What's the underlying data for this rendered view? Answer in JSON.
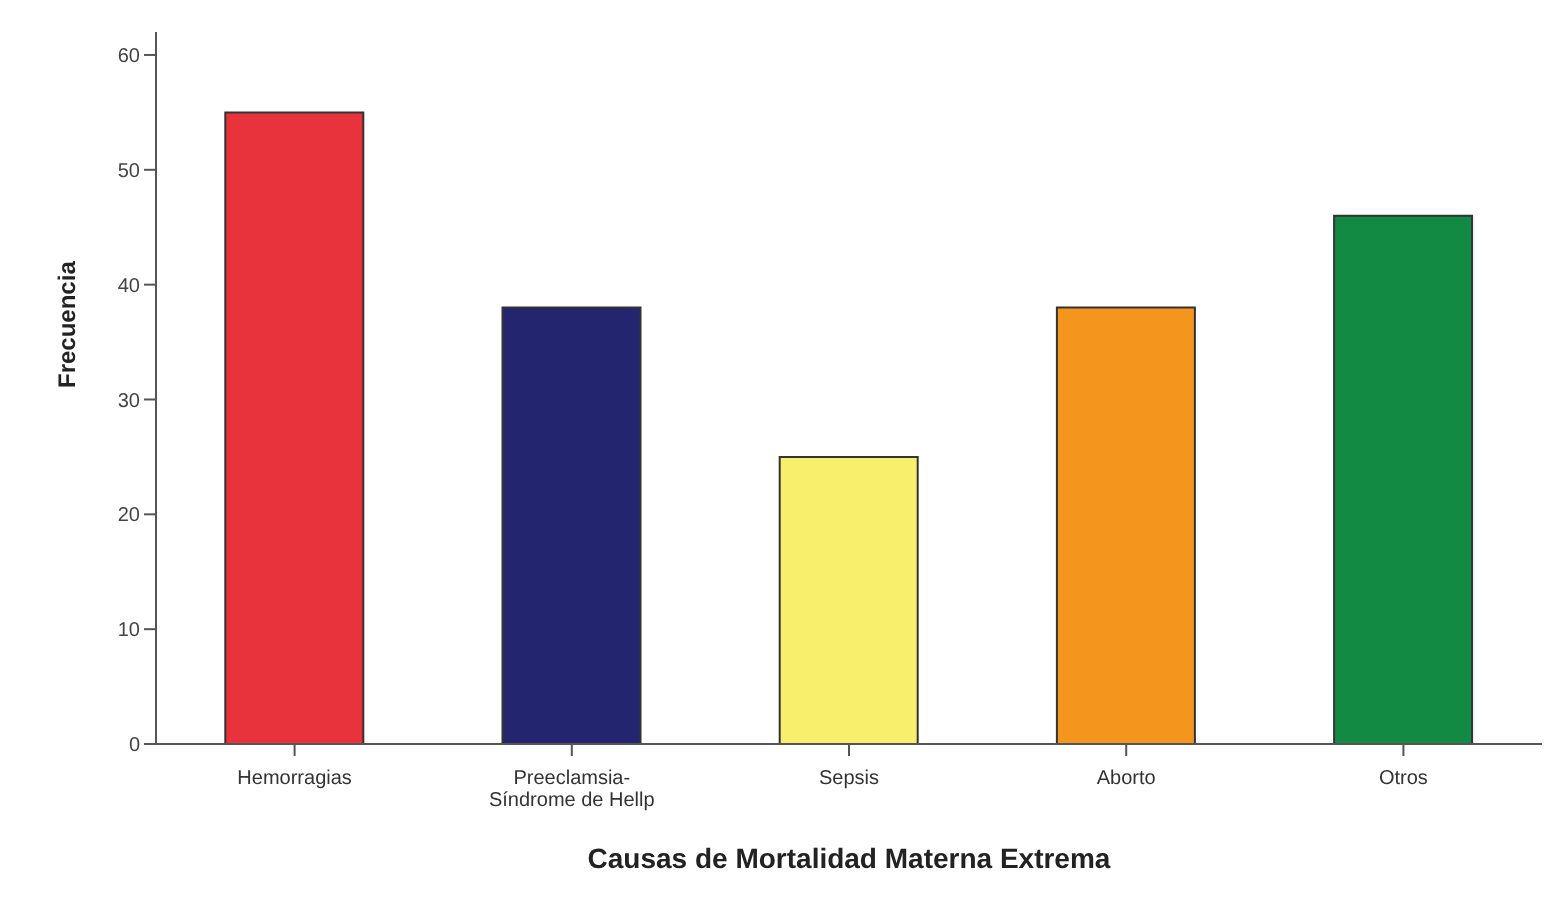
{
  "chart_data": {
    "type": "bar",
    "xlabel": "Causas de Mortalidad Materna Extrema",
    "ylabel": "Frecuencia",
    "categories": [
      "Hemorragias",
      "Preeclamsia-\nSíndrome de Hellp",
      "Sepsis",
      "Aborto",
      "Otros"
    ],
    "values": [
      55,
      38,
      25,
      38,
      46
    ],
    "colors": [
      "#e8323c",
      "#23266e",
      "#f8f06c",
      "#f4961e",
      "#128a44"
    ],
    "ylim": [
      0,
      62
    ],
    "yticks": [
      0,
      10,
      20,
      30,
      40,
      50,
      60
    ],
    "grid": false
  }
}
